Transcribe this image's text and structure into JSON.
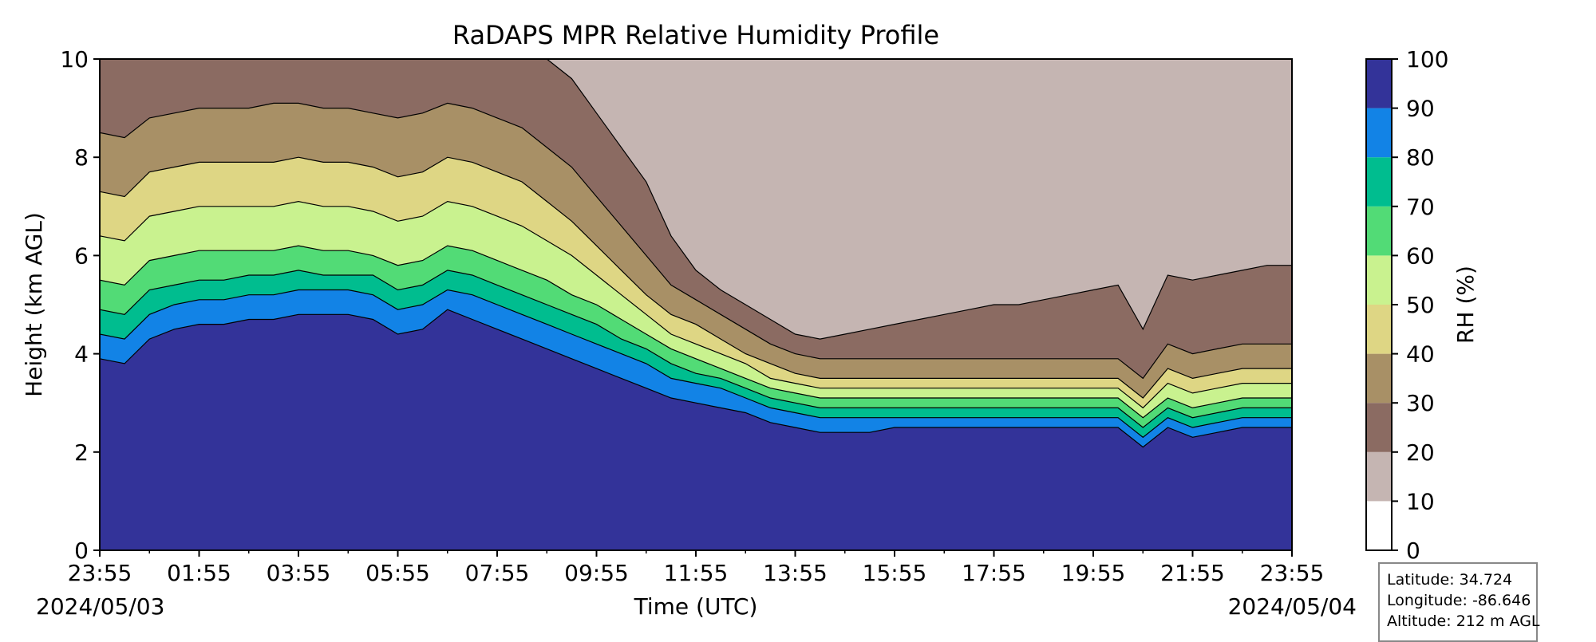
{
  "chart_data": {
    "type": "heatmap",
    "title": "RaDAPS MPR Relative Humidity Profile",
    "xlabel": "Time (UTC)",
    "ylabel": "Height (km AGL)",
    "colorbar_label": "RH (%)",
    "xticks": [
      "23:55",
      "01:55",
      "03:55",
      "05:55",
      "07:55",
      "09:55",
      "11:55",
      "13:55",
      "15:55",
      "17:55",
      "19:55",
      "21:55",
      "23:55"
    ],
    "xtick_hours": [
      0,
      2,
      4,
      6,
      8,
      10,
      12,
      14,
      16,
      18,
      20,
      22,
      24
    ],
    "date_start": "2024/05/03",
    "date_end": "2024/05/04",
    "xlim_hours": [
      0,
      24
    ],
    "ylim": [
      0,
      10
    ],
    "yticks": [
      0,
      2,
      4,
      6,
      8,
      10
    ],
    "yticklabels": [
      "0",
      "2",
      "4",
      "6",
      "8",
      "10"
    ],
    "colorbar_levels": [
      0,
      10,
      20,
      30,
      40,
      50,
      60,
      70,
      80,
      90,
      100
    ],
    "colorbar_ticklabels": [
      "0",
      "10",
      "20",
      "30",
      "40",
      "50",
      "60",
      "70",
      "80",
      "90",
      "100"
    ],
    "colors": [
      "#ffffff",
      "#c5b5b2",
      "#8b6b62",
      "#a89066",
      "#ded684",
      "#c9f28f",
      "#52db76",
      "#00bd8f",
      "#1283e6",
      "#333399"
    ],
    "contour_boundaries_km": {
      "hours": [
        0,
        0.5,
        1,
        1.5,
        2,
        2.5,
        3,
        3.5,
        4,
        4.5,
        5,
        5.5,
        6,
        6.5,
        7,
        7.5,
        8,
        8.5,
        9,
        9.5,
        10,
        10.5,
        11,
        11.5,
        12,
        12.5,
        13,
        13.5,
        14,
        14.5,
        15,
        15.5,
        16,
        16.5,
        17,
        17.5,
        18,
        18.5,
        19,
        19.5,
        20,
        20.5,
        21,
        21.5,
        22,
        22.5,
        23,
        23.5,
        24
      ],
      "rh_90": [
        3.9,
        3.8,
        4.3,
        4.5,
        4.6,
        4.6,
        4.7,
        4.7,
        4.8,
        4.8,
        4.8,
        4.7,
        4.4,
        4.5,
        4.9,
        4.7,
        4.5,
        4.3,
        4.1,
        3.9,
        3.7,
        3.5,
        3.3,
        3.1,
        3.0,
        2.9,
        2.8,
        2.6,
        2.5,
        2.4,
        2.4,
        2.4,
        2.5,
        2.5,
        2.5,
        2.5,
        2.5,
        2.5,
        2.5,
        2.5,
        2.5,
        2.5,
        2.1,
        2.5,
        2.3,
        2.4,
        2.5,
        2.5,
        2.5
      ],
      "rh_80": [
        4.4,
        4.3,
        4.8,
        5.0,
        5.1,
        5.1,
        5.2,
        5.2,
        5.3,
        5.3,
        5.3,
        5.2,
        4.9,
        5.0,
        5.3,
        5.2,
        5.0,
        4.8,
        4.6,
        4.4,
        4.2,
        4.0,
        3.8,
        3.5,
        3.4,
        3.3,
        3.1,
        2.9,
        2.8,
        2.7,
        2.7,
        2.7,
        2.7,
        2.7,
        2.7,
        2.7,
        2.7,
        2.7,
        2.7,
        2.7,
        2.7,
        2.7,
        2.3,
        2.7,
        2.5,
        2.6,
        2.7,
        2.7,
        2.7
      ],
      "rh_70": [
        4.9,
        4.8,
        5.3,
        5.4,
        5.5,
        5.5,
        5.6,
        5.6,
        5.7,
        5.6,
        5.6,
        5.6,
        5.3,
        5.4,
        5.7,
        5.6,
        5.4,
        5.2,
        5.0,
        4.8,
        4.6,
        4.3,
        4.1,
        3.8,
        3.6,
        3.5,
        3.3,
        3.1,
        3.0,
        2.9,
        2.9,
        2.9,
        2.9,
        2.9,
        2.9,
        2.9,
        2.9,
        2.9,
        2.9,
        2.9,
        2.9,
        2.9,
        2.5,
        2.9,
        2.7,
        2.8,
        2.9,
        2.9,
        2.9
      ],
      "rh_60": [
        5.5,
        5.4,
        5.9,
        6.0,
        6.1,
        6.1,
        6.1,
        6.1,
        6.2,
        6.1,
        6.1,
        6.0,
        5.8,
        5.9,
        6.2,
        6.1,
        5.9,
        5.7,
        5.5,
        5.2,
        5.0,
        4.7,
        4.4,
        4.1,
        3.9,
        3.7,
        3.5,
        3.3,
        3.2,
        3.1,
        3.1,
        3.1,
        3.1,
        3.1,
        3.1,
        3.1,
        3.1,
        3.1,
        3.1,
        3.1,
        3.1,
        3.1,
        2.7,
        3.1,
        2.9,
        3.0,
        3.1,
        3.1,
        3.1
      ],
      "rh_50": [
        6.4,
        6.3,
        6.8,
        6.9,
        7.0,
        7.0,
        7.0,
        7.0,
        7.1,
        7.0,
        7.0,
        6.9,
        6.7,
        6.8,
        7.1,
        7.0,
        6.8,
        6.6,
        6.3,
        6.0,
        5.6,
        5.2,
        4.8,
        4.4,
        4.2,
        4.0,
        3.8,
        3.5,
        3.4,
        3.3,
        3.3,
        3.3,
        3.3,
        3.3,
        3.3,
        3.3,
        3.3,
        3.3,
        3.3,
        3.3,
        3.3,
        3.3,
        2.9,
        3.4,
        3.2,
        3.3,
        3.4,
        3.4,
        3.4
      ],
      "rh_40": [
        7.3,
        7.2,
        7.7,
        7.8,
        7.9,
        7.9,
        7.9,
        7.9,
        8.0,
        7.9,
        7.9,
        7.8,
        7.6,
        7.7,
        8.0,
        7.9,
        7.7,
        7.5,
        7.1,
        6.7,
        6.2,
        5.7,
        5.2,
        4.8,
        4.6,
        4.3,
        4.0,
        3.8,
        3.6,
        3.5,
        3.5,
        3.5,
        3.5,
        3.5,
        3.5,
        3.5,
        3.5,
        3.5,
        3.5,
        3.5,
        3.5,
        3.5,
        3.1,
        3.7,
        3.5,
        3.6,
        3.7,
        3.7,
        3.7
      ],
      "rh_30": [
        8.5,
        8.4,
        8.8,
        8.9,
        9.0,
        9.0,
        9.0,
        9.1,
        9.1,
        9.0,
        9.0,
        8.9,
        8.8,
        8.9,
        9.1,
        9.0,
        8.8,
        8.6,
        8.2,
        7.8,
        7.2,
        6.6,
        6.0,
        5.4,
        5.1,
        4.8,
        4.5,
        4.2,
        4.0,
        3.9,
        3.9,
        3.9,
        3.9,
        3.9,
        3.9,
        3.9,
        3.9,
        3.9,
        3.9,
        3.9,
        3.9,
        3.9,
        3.5,
        4.2,
        4.0,
        4.1,
        4.2,
        4.2,
        4.2
      ],
      "rh_20": [
        10,
        10,
        10,
        10,
        10,
        10,
        10,
        10,
        10,
        10,
        10,
        10,
        10,
        10,
        10,
        10,
        10,
        10,
        10,
        9.6,
        8.9,
        8.2,
        7.5,
        6.4,
        5.7,
        5.3,
        5.0,
        4.7,
        4.4,
        4.3,
        4.4,
        4.5,
        4.6,
        4.7,
        4.8,
        4.9,
        5.0,
        5.0,
        5.1,
        5.2,
        5.3,
        5.4,
        4.5,
        5.6,
        5.5,
        5.6,
        5.7,
        5.8,
        5.8
      ],
      "rh_10": [
        10,
        10,
        10,
        10,
        10,
        10,
        10,
        10,
        10,
        10,
        10,
        10,
        10,
        10,
        10,
        10,
        10,
        10,
        10,
        10,
        10,
        10,
        10,
        10,
        10,
        10,
        10,
        10,
        10,
        10,
        10,
        10,
        10,
        10,
        10,
        10,
        10,
        10,
        10,
        10,
        10,
        10,
        10,
        10,
        10,
        10,
        10,
        10,
        10
      ]
    }
  },
  "station": {
    "latitude": "Latitude: 34.724",
    "longitude": "Longitude: -86.646",
    "altitude": "Altitude: 212 m AGL"
  }
}
